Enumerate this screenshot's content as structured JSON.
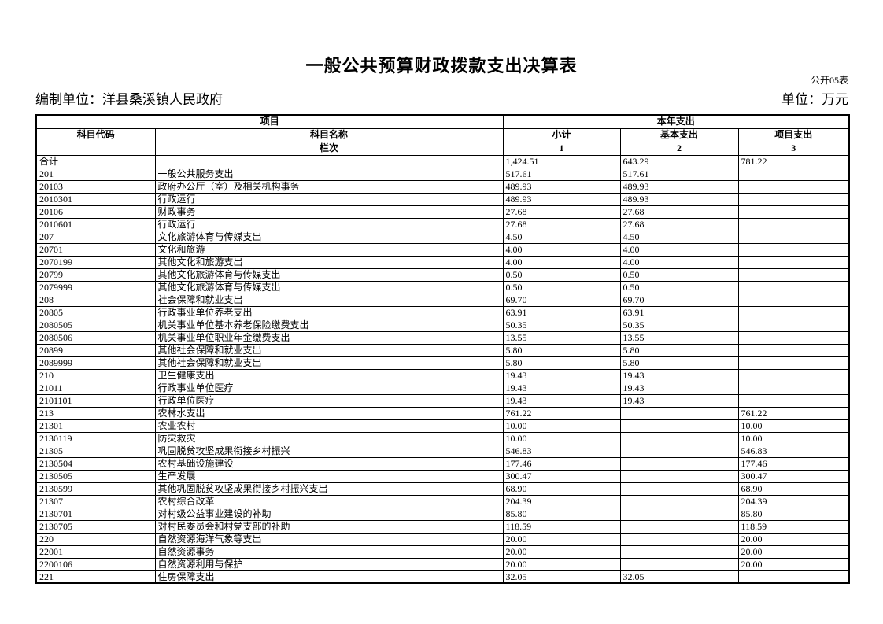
{
  "page": {
    "title": "一般公共预算财政拨款支出决算表",
    "form_code": "公开05表",
    "prepared_by": "编制单位：洋县桑溪镇人民政府",
    "unit": "单位：万元"
  },
  "table": {
    "header": {
      "group_project": "项目",
      "group_year_expense": "本年支出",
      "col_code": "科目代码",
      "col_name": "科目名称",
      "col_subtotal": "小计",
      "col_basic": "基本支出",
      "col_project": "项目支出",
      "lanci": "栏次",
      "col_numbers": [
        "1",
        "2",
        "3"
      ]
    },
    "rows": [
      {
        "code": "合计",
        "name": "",
        "subtotal": "1,424.51",
        "basic": "643.29",
        "project": "781.22"
      },
      {
        "code": "201",
        "name": "一般公共服务支出",
        "subtotal": "517.61",
        "basic": "517.61",
        "project": ""
      },
      {
        "code": "20103",
        "name": "政府办公厅（室）及相关机构事务",
        "subtotal": "489.93",
        "basic": "489.93",
        "project": ""
      },
      {
        "code": "2010301",
        "name": "行政运行",
        "subtotal": "489.93",
        "basic": "489.93",
        "project": ""
      },
      {
        "code": "20106",
        "name": "财政事务",
        "subtotal": "27.68",
        "basic": "27.68",
        "project": ""
      },
      {
        "code": "2010601",
        "name": "行政运行",
        "subtotal": "27.68",
        "basic": "27.68",
        "project": ""
      },
      {
        "code": "207",
        "name": "文化旅游体育与传媒支出",
        "subtotal": "4.50",
        "basic": "4.50",
        "project": ""
      },
      {
        "code": "20701",
        "name": "文化和旅游",
        "subtotal": "4.00",
        "basic": "4.00",
        "project": ""
      },
      {
        "code": "2070199",
        "name": "其他文化和旅游支出",
        "subtotal": "4.00",
        "basic": "4.00",
        "project": ""
      },
      {
        "code": "20799",
        "name": "其他文化旅游体育与传媒支出",
        "subtotal": "0.50",
        "basic": "0.50",
        "project": ""
      },
      {
        "code": "2079999",
        "name": "其他文化旅游体育与传媒支出",
        "subtotal": "0.50",
        "basic": "0.50",
        "project": ""
      },
      {
        "code": "208",
        "name": "社会保障和就业支出",
        "subtotal": "69.70",
        "basic": "69.70",
        "project": ""
      },
      {
        "code": "20805",
        "name": "行政事业单位养老支出",
        "subtotal": "63.91",
        "basic": "63.91",
        "project": ""
      },
      {
        "code": "2080505",
        "name": "机关事业单位基本养老保险缴费支出",
        "subtotal": "50.35",
        "basic": "50.35",
        "project": ""
      },
      {
        "code": "2080506",
        "name": "机关事业单位职业年金缴费支出",
        "subtotal": "13.55",
        "basic": "13.55",
        "project": ""
      },
      {
        "code": "20899",
        "name": "其他社会保障和就业支出",
        "subtotal": "5.80",
        "basic": "5.80",
        "project": ""
      },
      {
        "code": "2089999",
        "name": "其他社会保障和就业支出",
        "subtotal": "5.80",
        "basic": "5.80",
        "project": ""
      },
      {
        "code": "210",
        "name": "卫生健康支出",
        "subtotal": "19.43",
        "basic": "19.43",
        "project": ""
      },
      {
        "code": "21011",
        "name": "行政事业单位医疗",
        "subtotal": "19.43",
        "basic": "19.43",
        "project": ""
      },
      {
        "code": "2101101",
        "name": "行政单位医疗",
        "subtotal": "19.43",
        "basic": "19.43",
        "project": ""
      },
      {
        "code": "213",
        "name": "农林水支出",
        "subtotal": "761.22",
        "basic": "",
        "project": "761.22"
      },
      {
        "code": "21301",
        "name": "农业农村",
        "subtotal": "10.00",
        "basic": "",
        "project": "10.00"
      },
      {
        "code": "2130119",
        "name": "防灾救灾",
        "subtotal": "10.00",
        "basic": "",
        "project": "10.00"
      },
      {
        "code": "21305",
        "name": "巩固脱贫攻坚成果衔接乡村振兴",
        "subtotal": "546.83",
        "basic": "",
        "project": "546.83"
      },
      {
        "code": "2130504",
        "name": "农村基础设施建设",
        "subtotal": "177.46",
        "basic": "",
        "project": "177.46"
      },
      {
        "code": "2130505",
        "name": "生产发展",
        "subtotal": "300.47",
        "basic": "",
        "project": "300.47"
      },
      {
        "code": "2130599",
        "name": "其他巩固脱贫攻坚成果衔接乡村振兴支出",
        "subtotal": "68.90",
        "basic": "",
        "project": "68.90"
      },
      {
        "code": "21307",
        "name": "农村综合改革",
        "subtotal": "204.39",
        "basic": "",
        "project": "204.39"
      },
      {
        "code": "2130701",
        "name": "对村级公益事业建设的补助",
        "subtotal": "85.80",
        "basic": "",
        "project": "85.80"
      },
      {
        "code": "2130705",
        "name": "对村民委员会和村党支部的补助",
        "subtotal": "118.59",
        "basic": "",
        "project": "118.59"
      },
      {
        "code": "220",
        "name": "自然资源海洋气象等支出",
        "subtotal": "20.00",
        "basic": "",
        "project": "20.00"
      },
      {
        "code": "22001",
        "name": "自然资源事务",
        "subtotal": "20.00",
        "basic": "",
        "project": "20.00"
      },
      {
        "code": "2200106",
        "name": "自然资源利用与保护",
        "subtotal": "20.00",
        "basic": "",
        "project": "20.00"
      },
      {
        "code": "221",
        "name": "住房保障支出",
        "subtotal": "32.05",
        "basic": "32.05",
        "project": ""
      }
    ]
  }
}
